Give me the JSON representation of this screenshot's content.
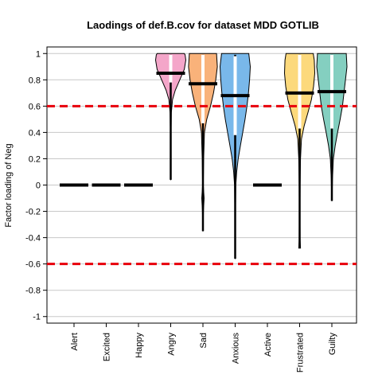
{
  "chart_data": {
    "type": "violin",
    "title": "Laodings of def.B.cov for dataset MDD GOTLIB",
    "xlabel": "",
    "ylabel": "Factor loading of Neg",
    "ylim": [
      -1.05,
      1.05
    ],
    "yticks": [
      1,
      0.8,
      0.6,
      0.4,
      0.2,
      0,
      -0.2,
      -0.4,
      -0.6,
      -0.8,
      -1
    ],
    "ytick_labels": [
      "1",
      "0.8",
      "0.6",
      "0.4",
      "0.2",
      "0",
      "-0.2",
      "-0.4",
      "-0.6",
      "-0.8",
      "-1"
    ],
    "grid": true,
    "reference_lines": [
      0.6,
      -0.6
    ],
    "reference_line_color": "#e8000b",
    "categories": [
      "Alert",
      "Excited",
      "Happy",
      "Angry",
      "Sad",
      "Anxious",
      "Active",
      "Frustrated",
      "Guilty"
    ],
    "series": [
      {
        "category": "Alert",
        "color": "#000000",
        "median": 0,
        "min": 0,
        "max": 0,
        "q1": 0,
        "q3": 0,
        "profile": []
      },
      {
        "category": "Excited",
        "color": "#000000",
        "median": 0,
        "min": 0,
        "max": 0,
        "q1": 0,
        "q3": 0,
        "profile": []
      },
      {
        "category": "Happy",
        "color": "#000000",
        "median": 0,
        "min": 0,
        "max": 0,
        "q1": 0,
        "q3": 0,
        "profile": []
      },
      {
        "category": "Angry",
        "color": "#f4a6c9",
        "median": 0.85,
        "min": 0.04,
        "max": 0.99,
        "q1": 0.78,
        "q3": 0.99,
        "profile": [
          [
            0.04,
            0.004
          ],
          [
            0.2,
            0.01
          ],
          [
            0.4,
            0.02
          ],
          [
            0.55,
            0.04
          ],
          [
            0.65,
            0.12
          ],
          [
            0.72,
            0.3
          ],
          [
            0.8,
            0.6
          ],
          [
            0.88,
            0.9
          ],
          [
            0.95,
            1.0
          ],
          [
            0.99,
            0.95
          ],
          [
            1.0,
            0.9
          ]
        ]
      },
      {
        "category": "Sad",
        "color": "#f9b27a",
        "median": 0.77,
        "min": -0.35,
        "max": 0.99,
        "q1": 0.47,
        "q3": 0.99,
        "profile": [
          [
            -0.35,
            0.004
          ],
          [
            -0.2,
            0.03
          ],
          [
            -0.1,
            0.08
          ],
          [
            0.0,
            0.02
          ],
          [
            0.2,
            0.05
          ],
          [
            0.4,
            0.1
          ],
          [
            0.5,
            0.25
          ],
          [
            0.6,
            0.5
          ],
          [
            0.7,
            0.7
          ],
          [
            0.8,
            0.85
          ],
          [
            0.9,
            0.95
          ],
          [
            1.0,
            0.9
          ]
        ]
      },
      {
        "category": "Anxious",
        "color": "#79b8ea",
        "median": 0.68,
        "min": -0.56,
        "max": 0.99,
        "q1": 0.38,
        "q3": 0.98,
        "profile": [
          [
            -0.56,
            0.004
          ],
          [
            -0.2,
            0.02
          ],
          [
            0.0,
            0.04
          ],
          [
            0.1,
            0.1
          ],
          [
            0.2,
            0.2
          ],
          [
            0.3,
            0.35
          ],
          [
            0.4,
            0.5
          ],
          [
            0.5,
            0.65
          ],
          [
            0.6,
            0.78
          ],
          [
            0.7,
            0.88
          ],
          [
            0.8,
            0.95
          ],
          [
            0.9,
            1.0
          ],
          [
            1.0,
            0.9
          ]
        ]
      },
      {
        "category": "Active",
        "color": "#000000",
        "median": 0,
        "min": 0,
        "max": 0,
        "q1": 0,
        "q3": 0,
        "profile": []
      },
      {
        "category": "Frustrated",
        "color": "#fcd97c",
        "median": 0.7,
        "min": -0.48,
        "max": 0.99,
        "q1": 0.43,
        "q3": 0.99,
        "profile": [
          [
            -0.48,
            0.06
          ],
          [
            -0.42,
            0.03
          ],
          [
            -0.2,
            0.02
          ],
          [
            0.0,
            0.03
          ],
          [
            0.2,
            0.06
          ],
          [
            0.35,
            0.12
          ],
          [
            0.45,
            0.3
          ],
          [
            0.55,
            0.55
          ],
          [
            0.65,
            0.78
          ],
          [
            0.75,
            0.92
          ],
          [
            0.85,
            1.0
          ],
          [
            0.95,
            0.97
          ],
          [
            1.0,
            0.9
          ]
        ]
      },
      {
        "category": "Guilty",
        "color": "#84cfc0",
        "median": 0.71,
        "min": -0.12,
        "max": 0.99,
        "q1": 0.43,
        "q3": 0.99,
        "profile": [
          [
            -0.12,
            0.004
          ],
          [
            0.05,
            0.04
          ],
          [
            0.2,
            0.1
          ],
          [
            0.3,
            0.22
          ],
          [
            0.4,
            0.38
          ],
          [
            0.5,
            0.55
          ],
          [
            0.6,
            0.7
          ],
          [
            0.7,
            0.8
          ],
          [
            0.8,
            0.9
          ],
          [
            0.9,
            1.0
          ],
          [
            1.0,
            0.95
          ]
        ]
      }
    ]
  }
}
